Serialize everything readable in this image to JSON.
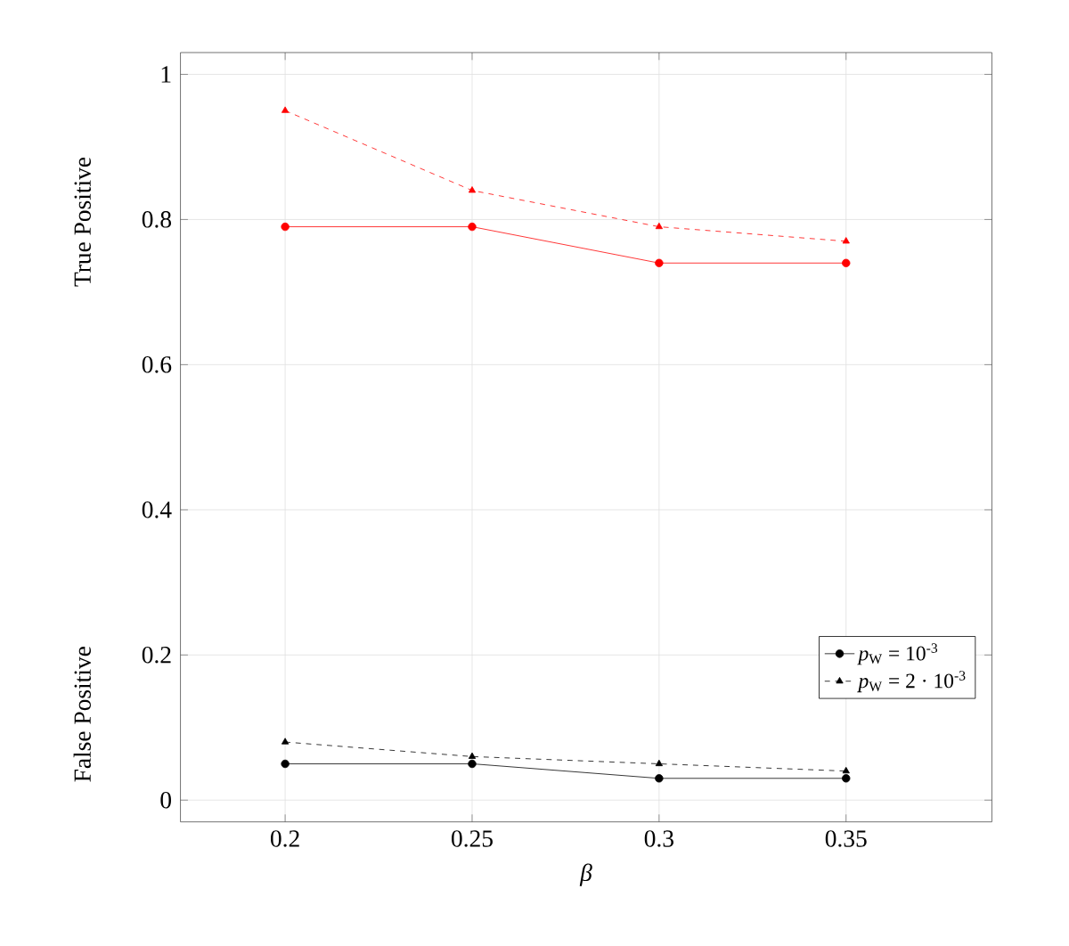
{
  "chart_data": {
    "type": "line",
    "xlabel": "*β*",
    "ylabel": "True Positive",
    "annotations": [
      "False Positive"
    ],
    "x": [
      0.2,
      0.25,
      0.3,
      0.35
    ],
    "xlim": [
      0.172,
      0.389
    ],
    "ylim": [
      -0.03,
      1.03
    ],
    "xticks": [
      0.2,
      0.25,
      0.3,
      0.35
    ],
    "yticks": [
      0,
      0.2,
      0.4,
      0.6,
      0.8,
      1
    ],
    "grid": true,
    "legend": "bottom right",
    "series": [
      {
        "name": "*p*$_{W}$ = 10$^{-3}$",
        "color": "#000000",
        "marker": "circle",
        "line_style": "solid",
        "values": [
          0.05,
          0.05,
          0.03,
          0.03
        ]
      },
      {
        "name": "*p*$_{W}$ = 2 · 10$^{-3}$",
        "color": "#000000",
        "marker": "triangle",
        "line_style": "dashed",
        "values": [
          0.08,
          0.06,
          0.05,
          0.04
        ]
      },
      {
        "color": "#ff0000",
        "marker": "circle",
        "line_style": "solid",
        "values": [
          0.79,
          0.79,
          0.74,
          0.74
        ]
      },
      {
        "color": "#ff0000",
        "marker": "triangle",
        "line_style": "dashed",
        "values": [
          0.95,
          0.84,
          0.79,
          0.77
        ]
      }
    ]
  }
}
